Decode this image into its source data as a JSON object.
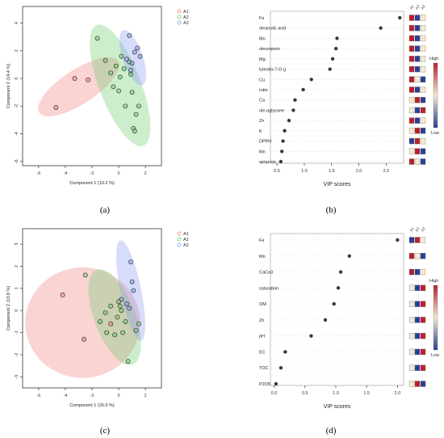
{
  "captions": [
    "(a)",
    "(b)",
    "(c)",
    "(d)"
  ],
  "chart_data": [
    {
      "panel": "a",
      "type": "scatter",
      "title": "",
      "xlabel": "Component 1 (13.2 %)",
      "ylabel": "Component 2 (14.4 %)",
      "xlim": [
        -7.2,
        3.2
      ],
      "ylim": [
        -6.3,
        5.2
      ],
      "xticks": [
        -6,
        -4,
        -2,
        0,
        2
      ],
      "yticks": [
        -6,
        -4,
        -2,
        0,
        2,
        4
      ],
      "legend": {
        "position": "top-right",
        "entries": [
          "A1",
          "A2",
          "A3"
        ]
      },
      "colors": {
        "A1": "#f08080",
        "A2": "#6fcf6f",
        "A3": "#8a9af0"
      },
      "series": [
        {
          "name": "A1",
          "points": [
            [
              -4.7,
              -2.1
            ],
            [
              -3.3,
              0.0
            ],
            [
              -2.3,
              -0.1
            ]
          ]
        },
        {
          "name": "A2",
          "points": [
            [
              -1.6,
              2.9
            ],
            [
              -1.0,
              1.3
            ],
            [
              -0.6,
              0.4
            ],
            [
              -0.4,
              -0.6
            ],
            [
              -0.2,
              0.9
            ],
            [
              0.0,
              -0.9
            ],
            [
              0.1,
              0.1
            ],
            [
              0.2,
              1.6
            ],
            [
              0.4,
              0.7
            ],
            [
              0.5,
              -2.0
            ],
            [
              0.8,
              1.2
            ],
            [
              1.0,
              -1.0
            ],
            [
              1.1,
              -3.6
            ],
            [
              1.2,
              -3.8
            ],
            [
              1.3,
              -2.6
            ],
            [
              1.5,
              -2.0
            ],
            [
              0.9,
              0.3
            ]
          ]
        },
        {
          "name": "A3",
          "points": [
            [
              0.8,
              3.1
            ],
            [
              0.6,
              1.4
            ],
            [
              1.0,
              1.1
            ],
            [
              1.2,
              1.9
            ],
            [
              1.4,
              2.2
            ],
            [
              1.6,
              1.6
            ],
            [
              0.9,
              0.6
            ]
          ]
        }
      ],
      "ellipses": [
        {
          "group": "A1",
          "cx": -3.0,
          "cy": -0.6,
          "rx": 3.5,
          "ry": 1.25,
          "angle": 32
        },
        {
          "group": "A2",
          "cx": 0.1,
          "cy": -0.5,
          "rx": 4.7,
          "ry": 1.55,
          "angle": -68
        },
        {
          "group": "A3",
          "cx": 1.05,
          "cy": 1.5,
          "rx": 2.1,
          "ry": 0.75,
          "angle": -70
        }
      ]
    },
    {
      "panel": "b",
      "type": "scatter",
      "title": "",
      "xlabel": "VIP scores",
      "ylabel": "",
      "xlim": [
        0.38,
        2.82
      ],
      "xticks": [
        0.5,
        1.0,
        1.5,
        2.0,
        2.5
      ],
      "xticklabels": [
        "0.5",
        "1.0",
        "1.5",
        "2.0",
        "2.5"
      ],
      "categories": [
        "Fe",
        "oleanolic acid",
        "Mo",
        "oleuropein",
        "Mg",
        "luteolin-7-O g",
        "Cu",
        "rutin",
        "Ca",
        "ole-aglycone",
        "Zn",
        "K",
        "DPPH",
        "Mn",
        "apigenin"
      ],
      "values": [
        2.75,
        2.4,
        1.6,
        1.58,
        1.52,
        1.47,
        1.13,
        0.98,
        0.83,
        0.8,
        0.72,
        0.64,
        0.61,
        0.59,
        0.57
      ],
      "heat_columns": [
        "A1",
        "A2",
        "A3"
      ],
      "heatmap": [
        [
          3,
          1,
          2
        ],
        [
          3,
          1,
          2
        ],
        [
          3,
          1,
          2
        ],
        [
          3,
          1,
          2
        ],
        [
          3,
          1,
          2
        ],
        [
          3,
          1,
          2
        ],
        [
          3,
          2,
          1
        ],
        [
          3,
          1,
          2
        ],
        [
          2,
          3,
          1
        ],
        [
          2,
          1,
          3
        ],
        [
          3,
          1,
          2
        ],
        [
          2,
          3,
          1
        ],
        [
          1,
          3,
          2
        ],
        [
          2,
          3,
          1
        ],
        [
          3,
          2,
          1
        ]
      ],
      "colorbar": {
        "high": "High",
        "low": "Low"
      }
    },
    {
      "panel": "c",
      "type": "scatter",
      "title": "",
      "xlabel": "Component 1 (26.9 %)",
      "ylabel": "Component 2 (13.8 %)",
      "xlim": [
        -7.2,
        3.2
      ],
      "ylim": [
        -3.5,
        3.7
      ],
      "xticks": [
        -6,
        -4,
        -2,
        0,
        2
      ],
      "yticks": [
        -3,
        -2,
        -1,
        0,
        1,
        2,
        3
      ],
      "legend": {
        "position": "top-right",
        "entries": [
          "A1",
          "A2",
          "A3"
        ]
      },
      "colors": {
        "A1": "#f08080",
        "A2": "#6fcf6f",
        "A3": "#8a9af0"
      },
      "series": [
        {
          "name": "A1",
          "points": [
            [
              -4.2,
              0.7
            ],
            [
              -2.6,
              -1.3
            ],
            [
              -0.6,
              -0.6
            ]
          ]
        },
        {
          "name": "A2",
          "points": [
            [
              -2.5,
              1.6
            ],
            [
              -1.4,
              -0.5
            ],
            [
              -1.0,
              -0.1
            ],
            [
              -0.9,
              -1.0
            ],
            [
              -0.6,
              0.2
            ],
            [
              -0.3,
              -1.1
            ],
            [
              -0.1,
              -0.3
            ],
            [
              0.0,
              0.4
            ],
            [
              0.1,
              0.2
            ],
            [
              0.3,
              -1.0
            ],
            [
              0.5,
              -0.5
            ],
            [
              0.7,
              -2.3
            ],
            [
              1.3,
              -0.9
            ],
            [
              1.5,
              -0.6
            ],
            [
              0.2,
              0.0
            ]
          ]
        },
        {
          "name": "A3",
          "points": [
            [
              0.9,
              2.2
            ],
            [
              1.0,
              1.3
            ],
            [
              1.1,
              0.9
            ],
            [
              0.8,
              0.1
            ],
            [
              0.6,
              0.3
            ],
            [
              0.2,
              0.5
            ]
          ]
        }
      ],
      "ellipses": [
        {
          "group": "A1",
          "cx": -2.7,
          "cy": -0.55,
          "rx": 4.3,
          "ry": 2.5,
          "angle": 0
        },
        {
          "group": "A2",
          "cx": -0.3,
          "cy": -0.3,
          "rx": 2.6,
          "ry": 1.35,
          "angle": -50
        },
        {
          "group": "A3",
          "cx": 0.9,
          "cy": 0.9,
          "rx": 2.4,
          "ry": 0.75,
          "angle": -70
        }
      ]
    },
    {
      "panel": "d",
      "type": "scatter",
      "title": "",
      "xlabel": "VIP scores",
      "ylabel": "",
      "xlim": [
        -0.06,
        2.1
      ],
      "xticks": [
        0.0,
        0.5,
        1.0,
        1.5,
        2.0
      ],
      "xticklabels": [
        "0.0",
        "0.5",
        "1.0",
        "1.5",
        "2.0"
      ],
      "categories": [
        "Fe",
        "Mn",
        "CaCo3",
        "saturation",
        "OM",
        "Zn",
        "pH",
        "EC",
        "TOC",
        "P2O5"
      ],
      "values": [
        2.0,
        1.22,
        1.08,
        1.04,
        0.97,
        0.83,
        0.6,
        0.18,
        0.11,
        0.03
      ],
      "heat_columns": [
        "A1",
        "A2",
        "A3"
      ],
      "heatmap": [
        [
          1,
          3,
          2
        ],
        [
          3,
          2,
          1
        ],
        [
          3,
          1,
          2
        ],
        [
          2,
          1,
          3
        ],
        [
          2,
          1,
          3
        ],
        [
          2,
          1,
          3
        ],
        [
          2,
          1,
          3
        ],
        [
          2,
          1,
          3
        ],
        [
          2,
          1,
          3
        ],
        [
          2,
          3,
          1
        ]
      ],
      "colorbar": {
        "high": "High",
        "low": "Low"
      }
    }
  ],
  "heat_colors": {
    "1": "#2b3f95",
    "2": "#f3ead0",
    "3": "#b8202a"
  }
}
